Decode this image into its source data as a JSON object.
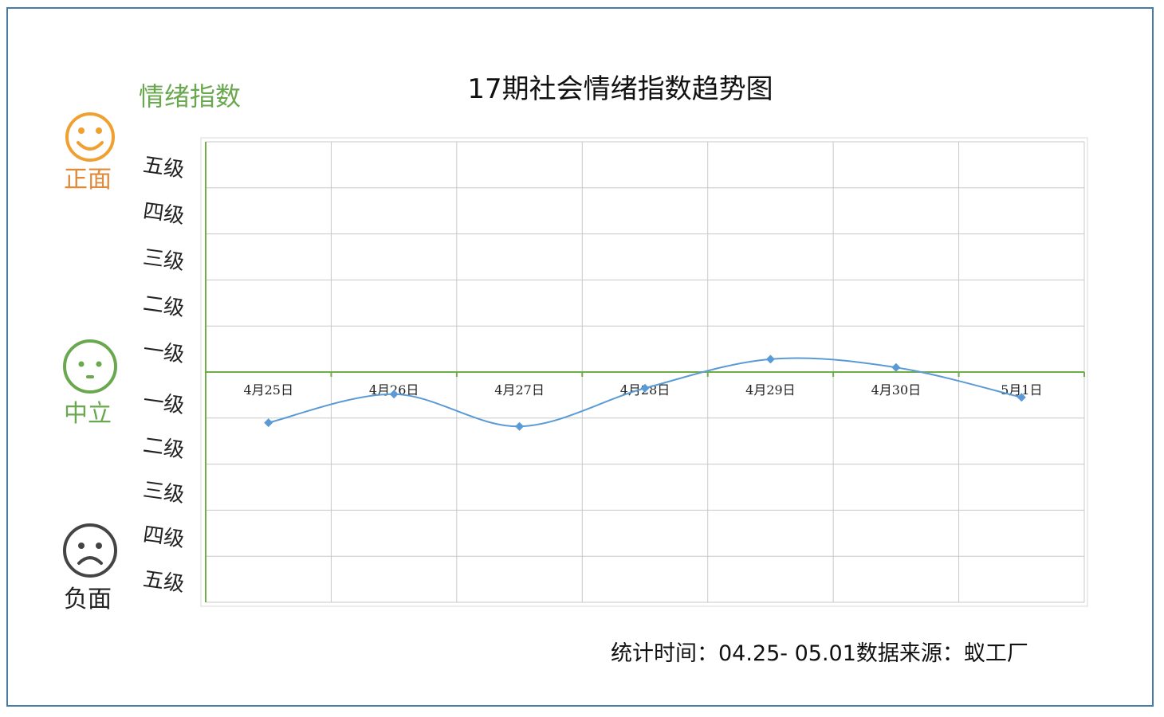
{
  "title": "17期社会情绪指数趋势图",
  "index_label": "情绪指数",
  "moods": {
    "positive": "正面",
    "neutral": "中立",
    "negative": "负面"
  },
  "levels_upper": [
    "五级",
    "四级",
    "三级",
    "二级",
    "一级"
  ],
  "levels_lower": [
    "一级",
    "二级",
    "三级",
    "四级",
    "五级"
  ],
  "footer": {
    "period_label": "统计时间：",
    "period": "04.25- 05.01",
    "source_label": "数据来源：",
    "source": "蚁工厂"
  },
  "colors": {
    "line": "#5b9bd5",
    "baseline": "#70ad47",
    "positive": "#f0a030",
    "neutral": "#6aa84f",
    "negative": "#444444",
    "grid": "#c8c8c8"
  },
  "chart_data": {
    "type": "line",
    "title": "17期社会情绪指数趋势图",
    "categories": [
      "4月25日",
      "4月26日",
      "4月27日",
      "4月28日",
      "4月29日",
      "4月30日",
      "5月1日"
    ],
    "series": [
      {
        "values": [
          -1.1,
          -0.48,
          -1.18,
          -0.35,
          0.28,
          0.1,
          -0.55
        ]
      }
    ],
    "ylim": [
      -5,
      5
    ],
    "grid": true,
    "smooth": true
  }
}
